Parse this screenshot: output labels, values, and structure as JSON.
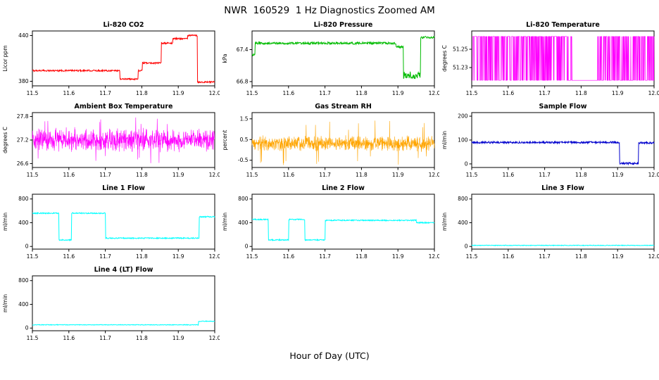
{
  "title": "NWR  160529  1 Hz Diagnostics Zoomed AM",
  "xlabel": "Hour of Day (UTC)",
  "layout": {
    "columns": 3,
    "x_axis_range": [
      11.5,
      12.0
    ]
  },
  "chart_data": [
    {
      "type": "line",
      "title": "Li-820 CO2",
      "ylabel": "Licor ppm",
      "color": "#FF0000",
      "style": "steps",
      "noise": 1.0,
      "xlim": [
        11.5,
        12.0
      ],
      "xticks": [
        11.5,
        11.6,
        11.7,
        11.8,
        11.9,
        12.0
      ],
      "ylim": [
        374,
        446
      ],
      "yticks": [
        380,
        440
      ],
      "ytick_labels": [
        "380",
        "440"
      ],
      "segments": [
        [
          11.5,
          11.74,
          394
        ],
        [
          11.74,
          11.79,
          383
        ],
        [
          11.79,
          11.801,
          394
        ],
        [
          11.801,
          11.853,
          404
        ],
        [
          11.853,
          11.885,
          430
        ],
        [
          11.885,
          11.925,
          436
        ],
        [
          11.925,
          11.952,
          440
        ],
        [
          11.952,
          12.0,
          379
        ]
      ]
    },
    {
      "type": "line",
      "title": "Li-820 Pressure",
      "ylabel": "kPa",
      "color": "#00BB00",
      "style": "steps",
      "noise": 0.02,
      "xlim": [
        11.5,
        12.0
      ],
      "xticks": [
        11.5,
        11.6,
        11.7,
        11.8,
        11.9,
        12.0
      ],
      "ylim": [
        66.72,
        67.75
      ],
      "yticks": [
        66.8,
        67.4
      ],
      "ytick_labels": [
        "66.8",
        "67.4"
      ],
      "segments": [
        [
          11.5,
          11.508,
          67.3
        ],
        [
          11.508,
          11.895,
          67.52
        ],
        [
          11.895,
          11.915,
          67.45
        ],
        [
          11.915,
          11.962,
          66.92,
          0.07
        ],
        [
          11.962,
          12.0,
          67.63
        ]
      ]
    },
    {
      "type": "line",
      "title": "Li-820 Temperature",
      "ylabel": "degrees C",
      "color": "#FF00FF",
      "style": "telegraph",
      "levels": [
        51.216,
        51.264
      ],
      "switch_p": 0.42,
      "quiet": [
        11.775,
        11.845
      ],
      "xlim": [
        11.5,
        12.0
      ],
      "xticks": [
        11.5,
        11.6,
        11.7,
        11.8,
        11.9,
        12.0
      ],
      "ylim": [
        51.21,
        51.27
      ],
      "yticks": [
        51.23,
        51.25
      ],
      "ytick_labels": [
        "51.23",
        "51.25"
      ],
      "segments": []
    },
    {
      "type": "line",
      "title": "Ambient Box Temperature",
      "ylabel": "degrees C",
      "color": "#FF00FF",
      "style": "noise",
      "mean": 27.2,
      "amp": 0.33,
      "spike_p": 0.02,
      "spike_min": 0.4,
      "spike_max": 0.62,
      "xlim": [
        11.5,
        12.0
      ],
      "xticks": [
        11.5,
        11.6,
        11.7,
        11.8,
        11.9,
        12.0
      ],
      "ylim": [
        26.5,
        27.9
      ],
      "yticks": [
        26.6,
        27.2,
        27.8
      ],
      "ytick_labels": [
        "26.6",
        "27.2",
        "27.8"
      ],
      "segments": []
    },
    {
      "type": "line",
      "title": "Gas Stream RH",
      "ylabel": "percent",
      "color": "#FFA500",
      "style": "noise",
      "mean": 0.3,
      "amp": 0.42,
      "spike_p": 0.025,
      "spike_min": 0.6,
      "spike_max": 1.2,
      "xlim": [
        11.5,
        12.0
      ],
      "xticks": [
        11.5,
        11.6,
        11.7,
        11.8,
        11.9,
        12.0
      ],
      "ylim": [
        -0.85,
        1.8
      ],
      "yticks": [
        -0.5,
        0.5,
        1.5
      ],
      "ytick_labels": [
        "-0.5",
        "0.5",
        "1.5"
      ],
      "segments": []
    },
    {
      "type": "line",
      "title": "Sample Flow",
      "ylabel": "ml/min",
      "color": "#0000CD",
      "style": "steps",
      "noise": 4,
      "xlim": [
        11.5,
        12.0
      ],
      "xticks": [
        11.5,
        11.6,
        11.7,
        11.8,
        11.9,
        12.0
      ],
      "ylim": [
        -15,
        215
      ],
      "yticks": [
        0,
        100,
        200
      ],
      "ytick_labels": [
        "0",
        "100",
        "200"
      ],
      "segments": [
        [
          11.5,
          11.905,
          90
        ],
        [
          11.905,
          11.957,
          2
        ],
        [
          11.957,
          12.0,
          88
        ]
      ]
    },
    {
      "type": "line",
      "title": "Line 1 Flow",
      "ylabel": "ml/min",
      "color": "#00FFFF",
      "style": "steps",
      "noise": 9,
      "xlim": [
        11.5,
        12.0
      ],
      "xticks": [
        11.5,
        11.6,
        11.7,
        11.8,
        11.9,
        12.0
      ],
      "ylim": [
        -45,
        880
      ],
      "yticks": [
        0,
        400,
        800
      ],
      "ytick_labels": [
        "0",
        "400",
        "800"
      ],
      "segments": [
        [
          11.5,
          11.573,
          560
        ],
        [
          11.573,
          11.607,
          110
        ],
        [
          11.607,
          11.7,
          560
        ],
        [
          11.7,
          11.957,
          140
        ],
        [
          11.957,
          12.0,
          500
        ]
      ]
    },
    {
      "type": "line",
      "title": "Line 2 Flow",
      "ylabel": "ml/min",
      "color": "#00FFFF",
      "style": "steps",
      "noise": 9,
      "xlim": [
        11.5,
        12.0
      ],
      "xticks": [
        11.5,
        11.6,
        11.7,
        11.8,
        11.9,
        12.0
      ],
      "ylim": [
        -45,
        880
      ],
      "yticks": [
        0,
        400,
        800
      ],
      "ytick_labels": [
        "0",
        "400",
        "800"
      ],
      "segments": [
        [
          11.5,
          11.545,
          455
        ],
        [
          11.545,
          11.6,
          110
        ],
        [
          11.6,
          11.645,
          455
        ],
        [
          11.645,
          11.7,
          110
        ],
        [
          11.7,
          11.95,
          440
        ],
        [
          11.95,
          12.0,
          400
        ]
      ]
    },
    {
      "type": "line",
      "title": "Line 3 Flow",
      "ylabel": "ml/min",
      "color": "#00FFFF",
      "style": "steps",
      "noise": 5,
      "xlim": [
        11.5,
        12.0
      ],
      "xticks": [
        11.5,
        11.6,
        11.7,
        11.8,
        11.9,
        12.0
      ],
      "ylim": [
        -45,
        880
      ],
      "yticks": [
        0,
        400,
        800
      ],
      "ytick_labels": [
        "0",
        "400",
        "800"
      ],
      "segments": [
        [
          11.5,
          12.0,
          18
        ]
      ]
    },
    {
      "type": "line",
      "title": "Line 4 (LT) Flow",
      "ylabel": "ml/min",
      "color": "#00FFFF",
      "style": "steps",
      "noise": 5,
      "xlim": [
        11.5,
        12.0
      ],
      "xticks": [
        11.5,
        11.6,
        11.7,
        11.8,
        11.9,
        12.0
      ],
      "ylim": [
        -45,
        880
      ],
      "yticks": [
        0,
        400,
        800
      ],
      "ytick_labels": [
        "0",
        "400",
        "800"
      ],
      "segments": [
        [
          11.5,
          11.955,
          55
        ],
        [
          11.955,
          12.0,
          115
        ]
      ]
    }
  ]
}
